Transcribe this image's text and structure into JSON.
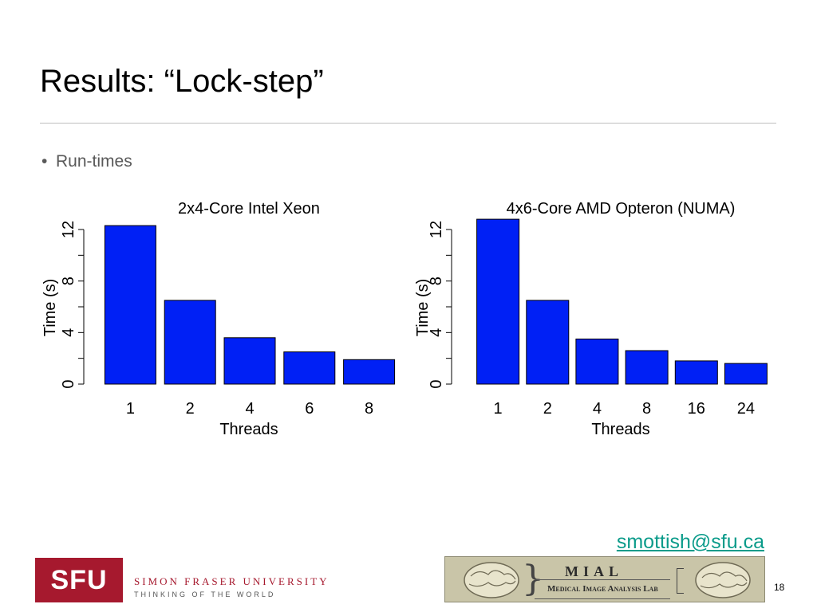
{
  "slide": {
    "title": "Results: “Lock-step”",
    "bullet": "Run-times",
    "email": "smottish@sfu.ca",
    "page_number": "18"
  },
  "logos": {
    "sfu_box": "SFU",
    "sfu_name": "SIMON FRASER UNIVERSITY",
    "sfu_tagline": "THINKING OF THE WORLD",
    "mial_abbr": "MIAL",
    "mial_full": "Medical Image Analysis Lab"
  },
  "colors": {
    "bar": "#0020f5",
    "link": "#0a9b8a",
    "sfu_red": "#a6192e"
  },
  "chart_data": [
    {
      "type": "bar",
      "title": "2x4-Core Intel Xeon",
      "xlabel": "Threads",
      "ylabel": "Time (s)",
      "categories": [
        "1",
        "2",
        "4",
        "6",
        "8"
      ],
      "values": [
        12.3,
        6.5,
        3.6,
        2.5,
        1.9
      ],
      "ylim": [
        0,
        12
      ],
      "yticks": [
        "0",
        "4",
        "8",
        "12"
      ],
      "grid": false
    },
    {
      "type": "bar",
      "title": "4x6-Core AMD Opteron (NUMA)",
      "xlabel": "Threads",
      "ylabel": "Time (s)",
      "categories": [
        "1",
        "2",
        "4",
        "8",
        "16",
        "24"
      ],
      "values": [
        12.8,
        6.5,
        3.5,
        2.6,
        1.8,
        1.6
      ],
      "ylim": [
        0,
        12
      ],
      "yticks": [
        "0",
        "4",
        "8",
        "12"
      ],
      "grid": false
    }
  ]
}
